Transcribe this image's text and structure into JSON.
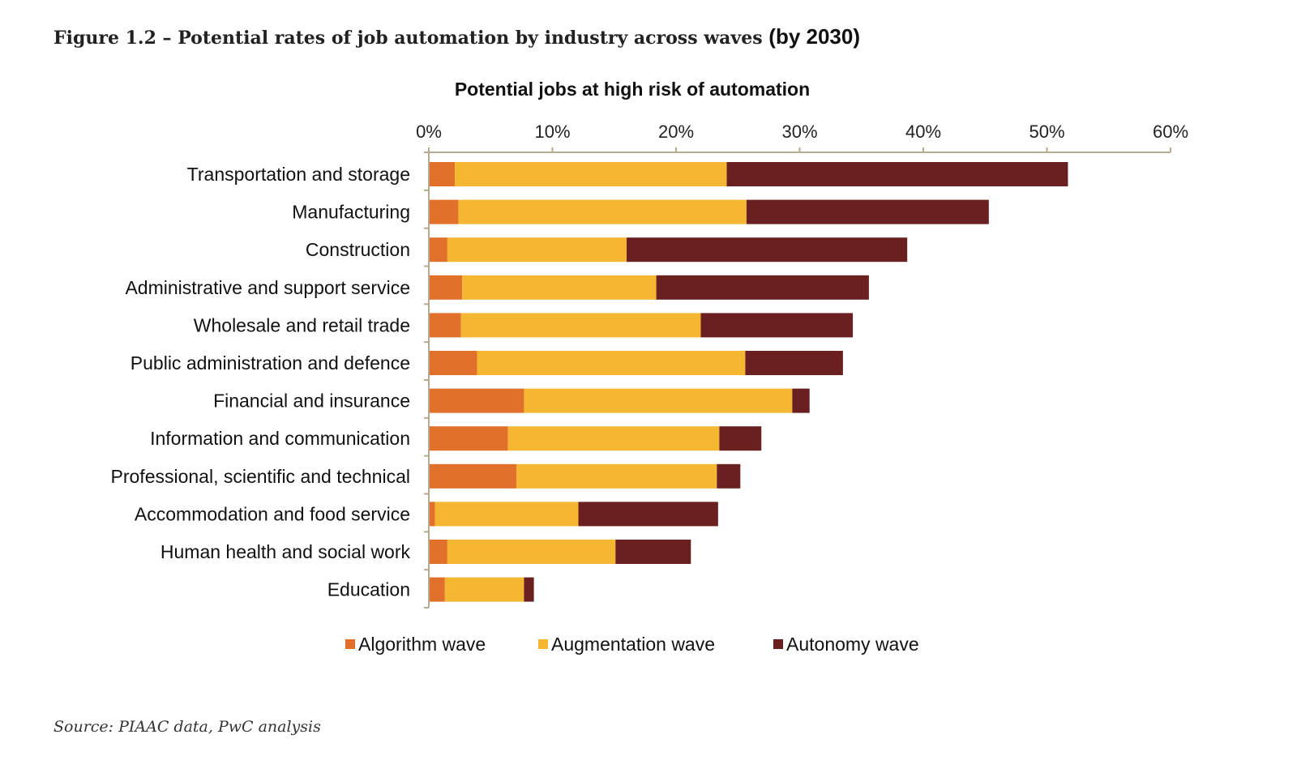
{
  "figure_title": "Figure 1.2 – Potential rates of job automation by industry across waves",
  "figure_title_suffix": "(by 2030)",
  "source": "Source: PIAAC data, PwC analysis",
  "colors": {
    "algorithm": "#e0702a",
    "augmentation": "#f5b632",
    "autonomy": "#6a2020",
    "axis": "#b5ab92",
    "text": "#111111"
  },
  "chart_data": {
    "type": "bar",
    "orientation": "horizontal",
    "stacked": true,
    "title": "Potential jobs at high risk of automation",
    "xlim": [
      0,
      60
    ],
    "x_ticks": [
      "0%",
      "10%",
      "20%",
      "30%",
      "40%",
      "50%",
      "60%"
    ],
    "x_tick_values": [
      0,
      10,
      20,
      30,
      40,
      50,
      60
    ],
    "grid": false,
    "legend_position": "bottom",
    "categories": [
      "Transportation and storage",
      "Manufacturing",
      "Construction",
      "Administrative and support service",
      "Wholesale and retail trade",
      "Public administration and defence",
      "Financial and insurance",
      "Information and communication",
      "Professional, scientific and technical",
      "Accommodation and food service",
      "Human health and social work",
      "Education"
    ],
    "series": [
      {
        "name": "Algorithm wave",
        "color_key": "algorithm",
        "values": [
          2.1,
          2.4,
          1.5,
          2.7,
          2.6,
          3.9,
          7.7,
          6.4,
          7.1,
          0.5,
          1.5,
          1.3
        ]
      },
      {
        "name": "Augmentation wave",
        "color_key": "augmentation",
        "values": [
          22.0,
          23.3,
          14.5,
          15.7,
          19.4,
          21.7,
          21.7,
          17.1,
          16.2,
          11.6,
          13.6,
          6.4
        ]
      },
      {
        "name": "Autonomy wave",
        "color_key": "autonomy",
        "values": [
          27.6,
          19.6,
          22.7,
          17.2,
          12.3,
          7.9,
          1.4,
          3.4,
          1.9,
          11.3,
          6.1,
          0.8
        ]
      }
    ]
  }
}
